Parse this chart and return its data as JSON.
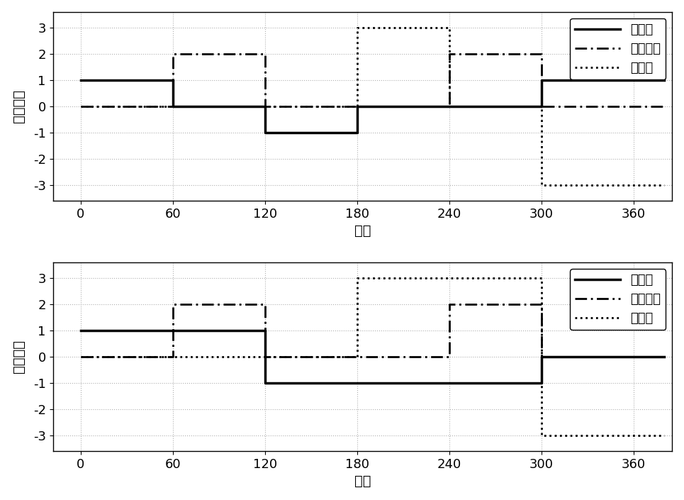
{
  "top_chart": {
    "ylabel": "动作序列",
    "xlabel": "时间",
    "solid_x": [
      0,
      60,
      60,
      120,
      120,
      180,
      180,
      300,
      300,
      380
    ],
    "solid_y": [
      1,
      1,
      0,
      0,
      -1,
      -1,
      0,
      0,
      1,
      1
    ],
    "dashdot_x": [
      0,
      60,
      60,
      120,
      120,
      180,
      180,
      240,
      240,
      300,
      300,
      380
    ],
    "dashdot_y": [
      0,
      0,
      2,
      2,
      0,
      0,
      0,
      0,
      2,
      2,
      0,
      0
    ],
    "dotted_x": [
      0,
      180,
      180,
      240,
      240,
      300,
      300,
      380
    ],
    "dotted_y": [
      0,
      0,
      3,
      3,
      0,
      0,
      -3,
      -3
    ],
    "ylim": [
      -3.6,
      3.6
    ],
    "xlim": [
      -18,
      385
    ],
    "yticks": [
      -3,
      -2,
      -1,
      0,
      1,
      2,
      3
    ],
    "xticks": [
      0,
      60,
      120,
      180,
      240,
      300,
      360
    ]
  },
  "bottom_chart": {
    "ylabel": "动作状态",
    "xlabel": "时间",
    "solid_x": [
      0,
      120,
      120,
      300,
      300,
      380
    ],
    "solid_y": [
      1,
      1,
      -1,
      -1,
      0,
      0
    ],
    "dashdot_x": [
      0,
      60,
      60,
      120,
      120,
      180,
      180,
      240,
      240,
      300,
      300,
      380
    ],
    "dashdot_y": [
      0,
      0,
      2,
      2,
      0,
      0,
      0,
      0,
      2,
      2,
      0,
      0
    ],
    "dotted_x": [
      0,
      180,
      180,
      300,
      300,
      380
    ],
    "dotted_y": [
      0,
      0,
      3,
      3,
      -3,
      -3
    ],
    "ylim": [
      -3.6,
      3.6
    ],
    "xlim": [
      -18,
      385
    ],
    "yticks": [
      -3,
      -2,
      -1,
      0,
      1,
      2,
      3
    ],
    "xticks": [
      0,
      60,
      120,
      180,
      240,
      300,
      360
    ]
  },
  "legend_labels": [
    "前摆臂",
    "整体前进",
    "机械臂"
  ],
  "line_color": "#000000",
  "background_color": "#ffffff",
  "grid_color": "#b0b0b0",
  "font_size": 14,
  "tick_font_size": 13,
  "legend_font_size": 13,
  "solid_lw": 2.5,
  "dashdot_lw": 2.0,
  "dotted_lw": 2.0
}
